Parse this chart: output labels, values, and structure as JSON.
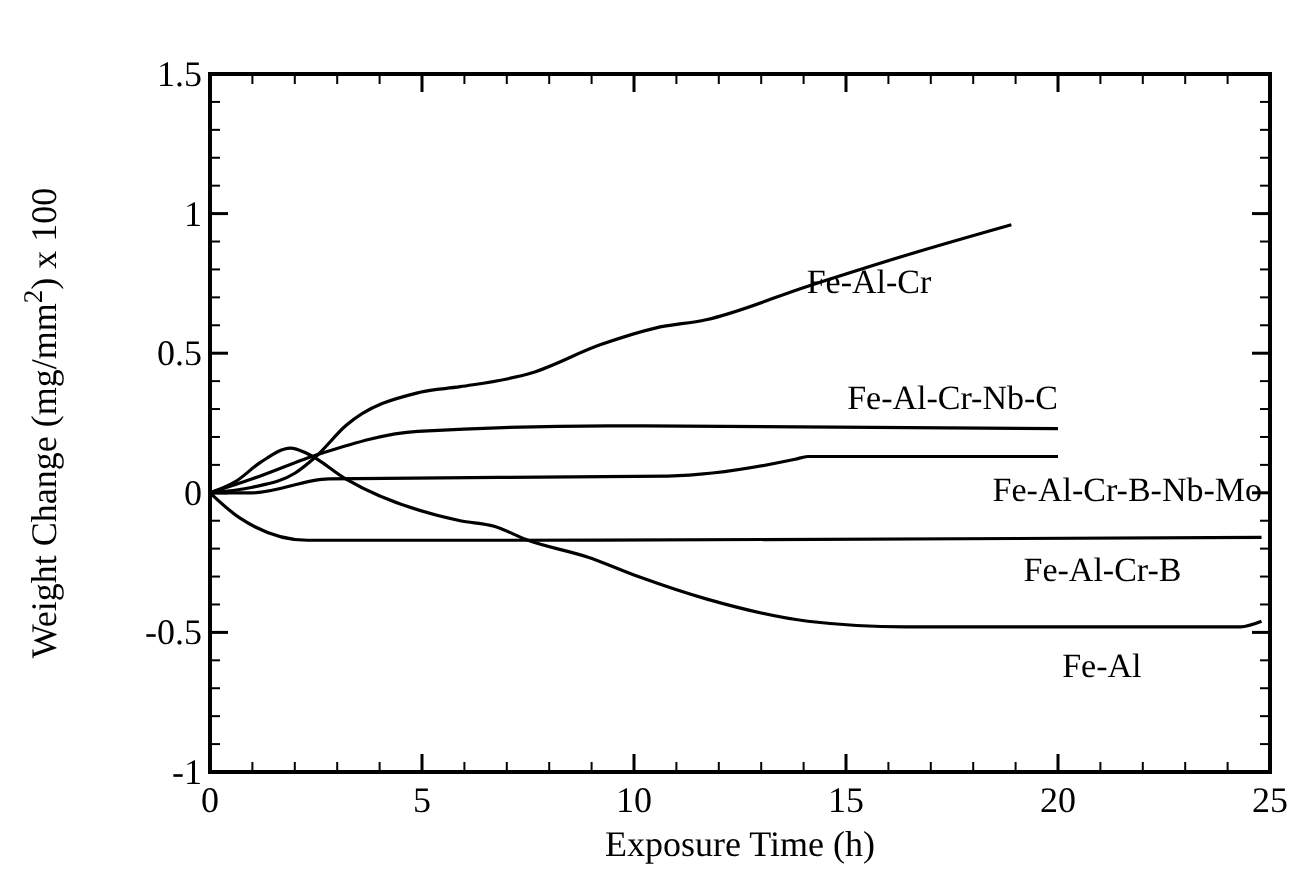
{
  "chart_data": {
    "type": "line",
    "xlabel": "Exposure Time (h)",
    "ylabel": "Weight Change (mg/mm$^{2}$) x 100",
    "xlim": [
      0,
      25
    ],
    "ylim": [
      -1,
      1.5
    ],
    "xticks": [
      0,
      5,
      10,
      15,
      20,
      25
    ],
    "yticks": [
      -1,
      -0.5,
      0,
      0.5,
      1,
      1.5
    ],
    "grid": false,
    "legend": "right",
    "marker": "none",
    "line_style": "solid",
    "series": [
      {
        "name": "Fe-Al-Cr",
        "color": "#000000",
        "x": [
          0,
          1,
          2,
          2.5,
          3.2,
          4.95,
          5.9,
          7.6,
          9.2,
          10.5,
          11.7,
          14.1,
          16.4,
          18.9
        ],
        "values": [
          0,
          0.02,
          0.07,
          0.13,
          0.24,
          0.36,
          0.38,
          0.43,
          0.53,
          0.59,
          0.62,
          0.74,
          0.85,
          0.96
        ]
      },
      {
        "name": "Fe-Al-Cr-Nb-C",
        "color": "#000000",
        "x": [
          0,
          1,
          2.6,
          4.9,
          9.4,
          20
        ],
        "values": [
          0,
          0.05,
          0.14,
          0.22,
          0.24,
          0.23
        ]
      },
      {
        "name": "Fe-Al-Cr-B-Nb-Mo",
        "color": "#000000",
        "x": [
          0,
          1,
          2.8,
          10.8,
          13.8,
          14.1,
          20
        ],
        "values": [
          0,
          0,
          0.05,
          0.06,
          0.12,
          0.13,
          0.13
        ]
      },
      {
        "name": "Fe-Al-Cr-B",
        "color": "#000000",
        "x": [
          0,
          0.7,
          2.3,
          7,
          24.8
        ],
        "values": [
          0,
          -0.09,
          -0.17,
          -0.17,
          -0.16
        ]
      },
      {
        "name": "Fe-Al",
        "color": "#000000",
        "x": [
          0,
          0.6,
          1.2,
          1.9,
          2.3,
          3.2,
          5.9,
          6.7,
          7.5,
          8.9,
          10.1,
          11.7,
          14.1,
          16.4,
          24.3,
          24.8
        ],
        "values": [
          0,
          0.04,
          0.11,
          0.16,
          0.14,
          0.05,
          -0.1,
          -0.12,
          -0.17,
          -0.23,
          -0.3,
          -0.38,
          -0.46,
          -0.48,
          -0.48,
          -0.46
        ]
      }
    ]
  }
}
